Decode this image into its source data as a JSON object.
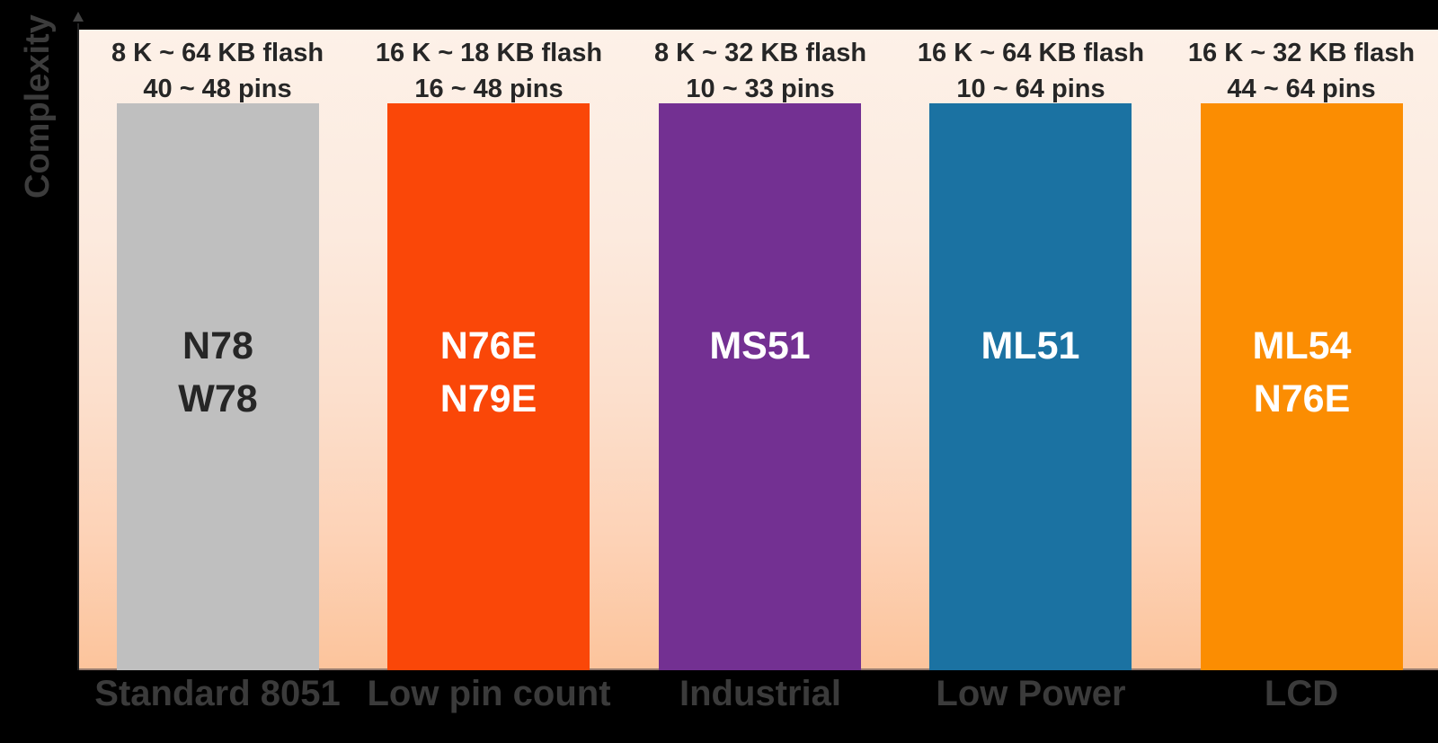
{
  "chart_data": {
    "type": "bar",
    "title": "",
    "xlabel": "",
    "ylabel": "Complexity",
    "grid": false,
    "legend": false,
    "y_axis_ticks": [],
    "categories": [
      "Standard 8051",
      "Low pin count",
      "Industrial",
      "Low Power",
      "LCD"
    ],
    "values": [
      1,
      1,
      1,
      1,
      1
    ],
    "bars": [
      {
        "category": "Standard 8051",
        "flash_range": "8 K ~ 64 KB flash",
        "pin_range": "40 ~ 48 pins",
        "chip_line1": "N78",
        "chip_line2": "W78",
        "color": "#bfbfbf",
        "chip_text_color": "#262626"
      },
      {
        "category": "Low pin count",
        "flash_range": "16 K ~ 18 KB flash",
        "pin_range": "16 ~ 48 pins",
        "chip_line1": "N76E",
        "chip_line2": "N79E",
        "color": "#fa4708",
        "chip_text_color": "#ffffff"
      },
      {
        "category": "Industrial",
        "flash_range": "8 K ~ 32 KB flash",
        "pin_range": "10 ~ 33 pins",
        "chip_line1": "MS51",
        "chip_line2": "",
        "color": "#733092",
        "chip_text_color": "#ffffff"
      },
      {
        "category": "Low Power",
        "flash_range": "16 K ~ 64 KB flash",
        "pin_range": "10 ~ 64 pins",
        "chip_line1": "ML51",
        "chip_line2": "",
        "color": "#1b72a2",
        "chip_text_color": "#ffffff"
      },
      {
        "category": "LCD",
        "flash_range": "16 K ~ 32 KB flash",
        "pin_range": "44 ~ 64 pins",
        "chip_line1": "ML54",
        "chip_line2": "N76E",
        "color": "#fb8d02",
        "chip_text_color": "#ffffff"
      }
    ]
  }
}
